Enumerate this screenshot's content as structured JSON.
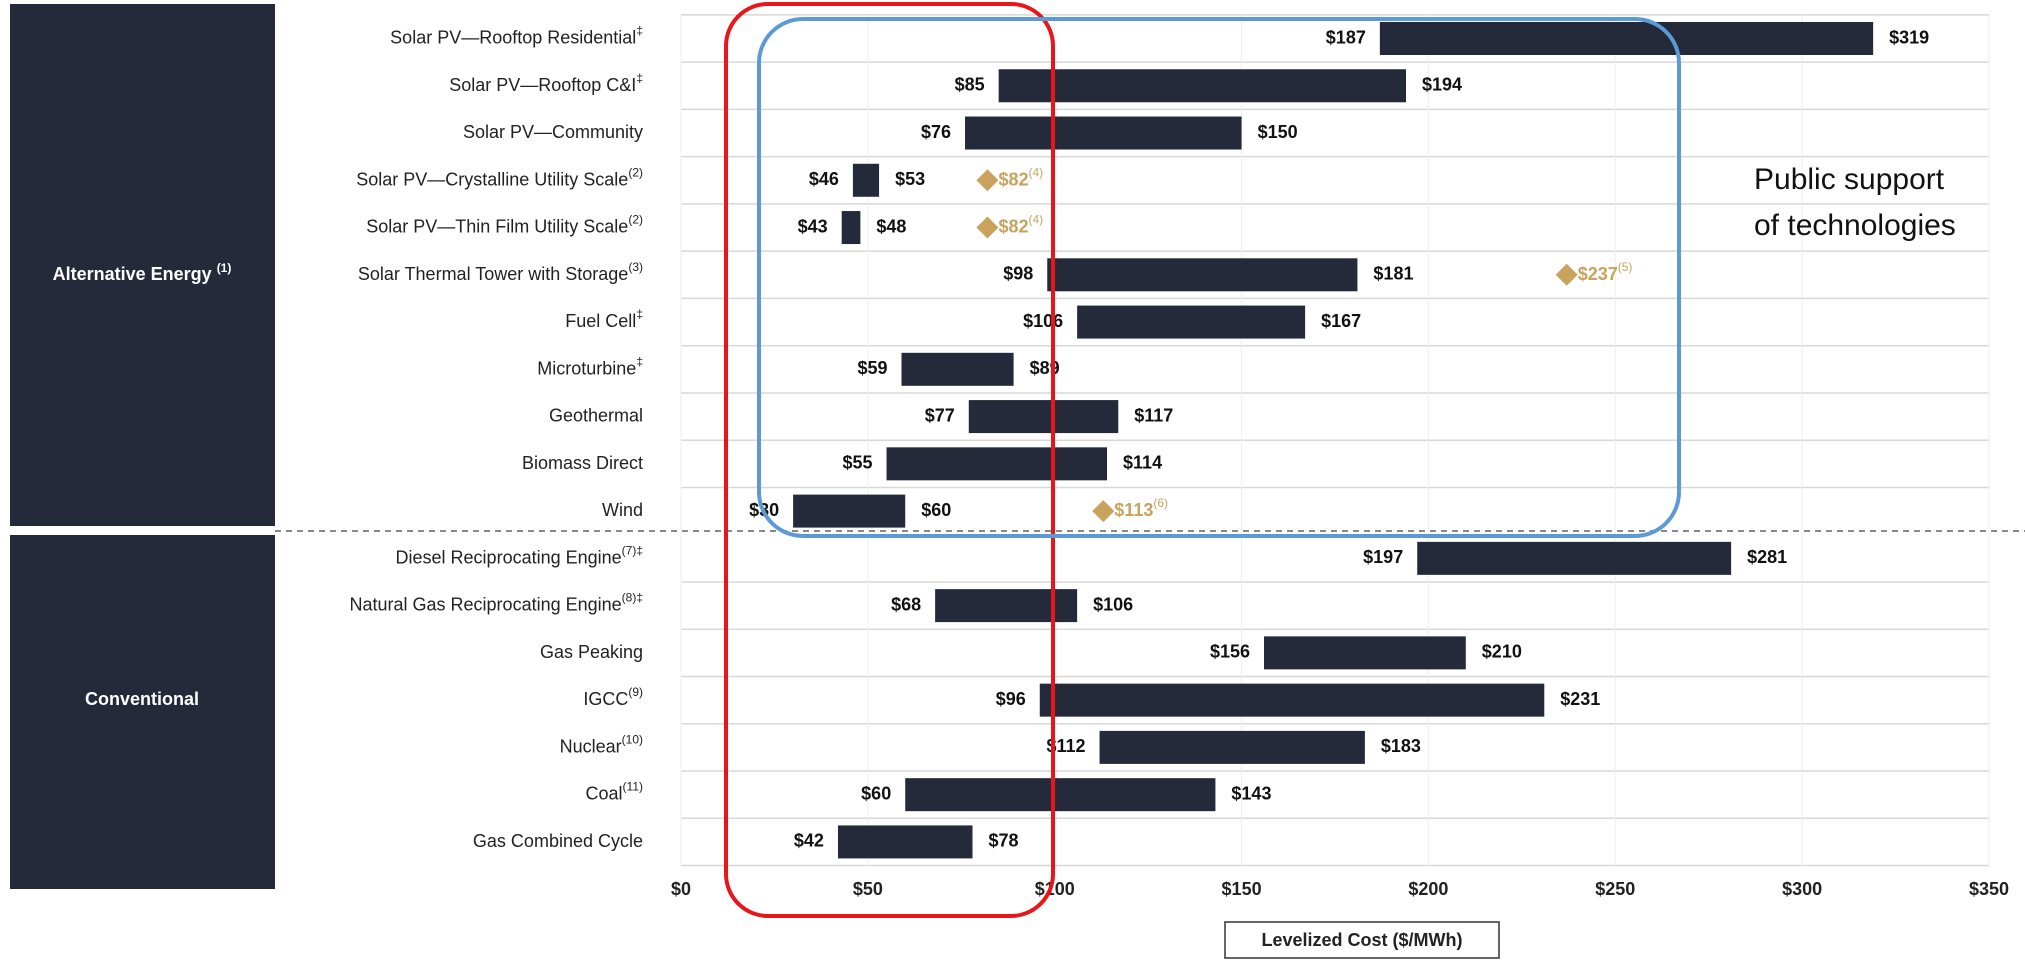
{
  "chart_data": {
    "type": "range_bar",
    "categories": [
      "Solar PV—Rooftop Residential",
      "Solar PV—Rooftop C&I",
      "Solar PV—Community",
      "Solar PV—Crystalline Utility Scale",
      "Solar PV—Thin Film Utility Scale",
      "Solar Thermal Tower with Storage",
      "Fuel Cell",
      "Microturbine",
      "Geothermal",
      "Biomass Direct",
      "Wind",
      "Diesel Reciprocating Engine",
      "Natural Gas Reciprocating Engine",
      "Gas Peaking",
      "IGCC",
      "Nuclear",
      "Coal",
      "Gas Combined Cycle"
    ],
    "category_notes": [
      "‡",
      "‡",
      null,
      "(2)",
      "(2)",
      "(3)",
      "‡",
      "‡",
      null,
      null,
      null,
      "(7)‡",
      "(8)‡",
      null,
      "(9)",
      "(10)",
      "(11)",
      null
    ],
    "groups": [
      {
        "name": "Alternative Energy",
        "note": "(1)",
        "size": 11
      },
      {
        "name": "Conventional",
        "size": 7
      }
    ],
    "low": [
      187,
      85,
      76,
      46,
      43,
      98,
      106,
      59,
      77,
      55,
      30,
      197,
      68,
      156,
      96,
      112,
      60,
      42
    ],
    "low_labels": [
      "$187",
      "$85",
      "$76",
      "$46",
      "$43",
      "$98",
      "$106",
      "$59",
      "$77",
      "$55",
      "$30",
      "$197",
      "$68",
      "$156",
      "$96",
      "$112",
      "$60",
      "$42"
    ],
    "high": [
      319,
      194,
      150,
      53,
      48,
      181,
      167,
      89,
      117,
      114,
      60,
      281,
      106,
      210,
      231,
      183,
      143,
      78
    ],
    "high_labels": [
      "$319",
      "$194",
      "$150",
      "$53",
      "$48",
      "$181",
      "$167",
      "$89",
      "$117",
      "$114",
      "$60",
      "$281",
      "$106",
      "$210",
      "$231",
      "$183",
      "$143",
      "$78"
    ],
    "color": "#252a3a",
    "diamond_values": [
      null,
      null,
      null,
      82,
      82,
      237,
      null,
      null,
      null,
      null,
      113,
      null,
      null,
      null,
      null,
      null,
      null,
      null
    ],
    "diamond_labels": [
      null,
      null,
      null,
      "$82",
      "$82",
      "$237",
      null,
      null,
      null,
      null,
      "$113",
      null,
      null,
      null,
      null,
      null,
      null,
      null
    ],
    "diamond_notes": [
      null,
      null,
      null,
      "(4)",
      "(4)",
      "(5)",
      null,
      null,
      null,
      null,
      "(6)",
      null,
      null,
      null,
      null,
      null,
      null,
      null
    ],
    "diamond_color": "#c9a25c",
    "xlim": [
      0,
      350
    ],
    "xticks": [
      {
        "value": 0,
        "label": "$0"
      },
      {
        "value": 50,
        "label": "$50"
      },
      {
        "value": 100,
        "label": "$100"
      },
      {
        "value": 150,
        "label": "$150"
      },
      {
        "value": 200,
        "label": "$200"
      },
      {
        "value": 250,
        "label": "$250"
      },
      {
        "value": 300,
        "label": "$300"
      },
      {
        "value": 350,
        "label": "$350"
      }
    ],
    "xlabel": "Levelized Cost ($/MWh)",
    "annotation": [
      "Public support",
      "of technologies"
    ]
  }
}
